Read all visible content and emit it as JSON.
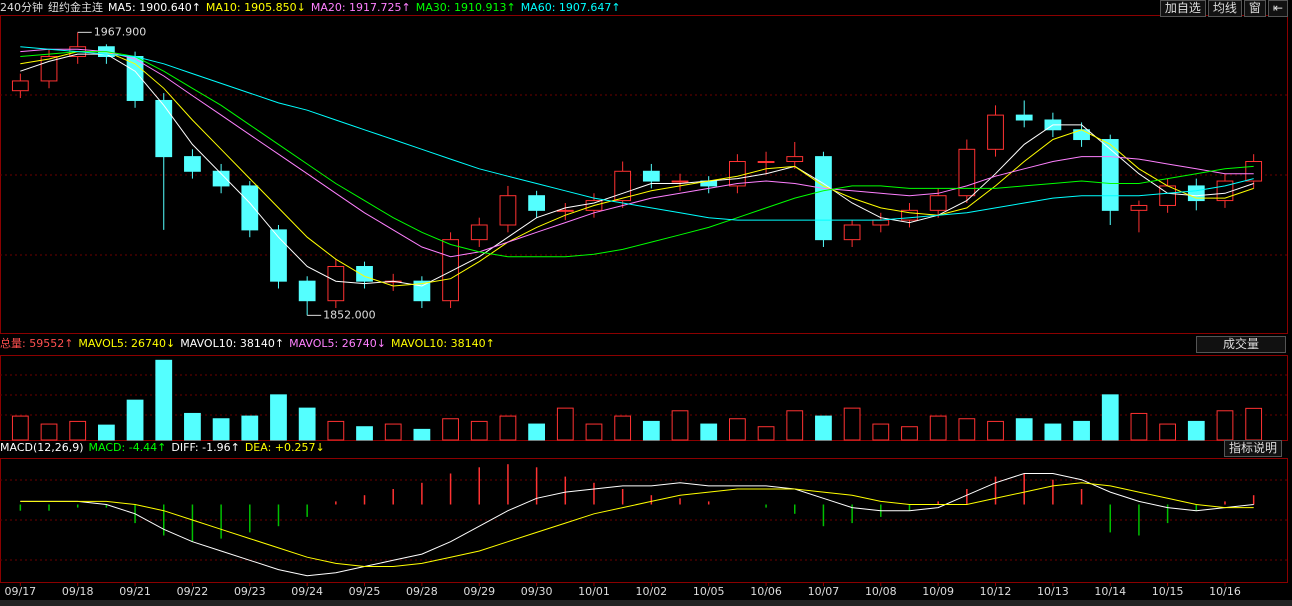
{
  "header": {
    "period": "240分钟",
    "symbol": "纽约金主连",
    "buttons": [
      "加自选",
      "均线",
      "窗"
    ]
  },
  "chart_data": [
    {
      "type": "candlestick",
      "legend": [
        {
          "text": "MA5: 1900.640↑",
          "color": "#ffffff"
        },
        {
          "text": "MA10: 1905.850↓",
          "color": "#ffff00"
        },
        {
          "text": "MA20: 1917.725↑",
          "color": "#ff80ff"
        },
        {
          "text": "MA30: 1910.913↑",
          "color": "#00ff00"
        },
        {
          "text": "MA60: 1907.647↑",
          "color": "#00ffff"
        }
      ],
      "categories": [
        "09/17",
        null,
        "09/18",
        null,
        "09/21",
        null,
        "09/22",
        null,
        "09/23",
        null,
        "09/24",
        null,
        "09/25",
        null,
        "09/28",
        null,
        "09/29",
        null,
        "09/30",
        null,
        "10/01",
        null,
        "10/02",
        null,
        "10/05",
        null,
        "10/06",
        null,
        "10/07",
        null,
        "10/08",
        null,
        "10/09",
        null,
        "10/12",
        null,
        "10/13",
        null,
        "10/14",
        null,
        "10/15",
        null,
        "10/16",
        null
      ],
      "open": [
        1944,
        1948,
        1958,
        1962,
        1958,
        1940,
        1917,
        1911,
        1905,
        1887,
        1866,
        1858,
        1872,
        1866,
        1866,
        1858,
        1883,
        1889,
        1901,
        1895,
        1895,
        1899,
        1911,
        1907,
        1907,
        1905,
        1915,
        1915,
        1917,
        1883,
        1889,
        1891,
        1895,
        1901,
        1920,
        1934,
        1932,
        1928,
        1924,
        1895,
        1897,
        1905,
        1899,
        1907
      ],
      "high": [
        1951,
        1961,
        1967.9,
        1963,
        1960,
        1943,
        1920,
        1914,
        1907,
        1889,
        1868,
        1875,
        1874,
        1869,
        1868,
        1886,
        1892,
        1905,
        1903,
        1898,
        1902,
        1915,
        1914,
        1910,
        1909,
        1918,
        1919,
        1923,
        1919,
        1891,
        1894,
        1898,
        1904,
        1924,
        1938,
        1940,
        1935,
        1931,
        1926,
        1899,
        1908,
        1908,
        1910,
        1918
      ],
      "low": [
        1941,
        1945,
        1955,
        1955,
        1937,
        1887,
        1908,
        1902,
        1884,
        1863,
        1852,
        1855,
        1863,
        1862,
        1855,
        1855,
        1880,
        1886,
        1892,
        1891,
        1892,
        1896,
        1904,
        1903,
        1902,
        1902,
        1910,
        1912,
        1880,
        1880,
        1886,
        1888,
        1892,
        1898,
        1917,
        1929,
        1925,
        1921,
        1889,
        1886,
        1894,
        1895,
        1896,
        1904
      ],
      "close": [
        1948,
        1958,
        1962,
        1958,
        1940,
        1917,
        1911,
        1905,
        1887,
        1866,
        1858,
        1872,
        1866,
        1866,
        1858,
        1883,
        1889,
        1901,
        1895,
        1895,
        1899,
        1911,
        1907,
        1907,
        1905,
        1915,
        1915,
        1917,
        1883,
        1889,
        1891,
        1895,
        1901,
        1920,
        1934,
        1932,
        1928,
        1924,
        1895,
        1897,
        1905,
        1899,
        1907,
        1915
      ],
      "lines": [
        {
          "color": "#ffffff",
          "values": [
            1952,
            1956,
            1959,
            1959,
            1952,
            1938,
            1922,
            1910,
            1898,
            1884,
            1872,
            1866,
            1865,
            1866,
            1864,
            1870,
            1876,
            1884,
            1892,
            1896,
            1898,
            1902,
            1906,
            1906,
            1907,
            1908,
            1910,
            1913,
            1906,
            1898,
            1892,
            1890,
            1893,
            1899,
            1910,
            1922,
            1930,
            1930,
            1920,
            1910,
            1902,
            1901,
            1902,
            1906
          ]
        },
        {
          "color": "#ffff00",
          "values": [
            1955,
            1957,
            1960,
            1960,
            1955,
            1945,
            1932,
            1920,
            1908,
            1896,
            1884,
            1875,
            1868,
            1864,
            1865,
            1867,
            1874,
            1882,
            1888,
            1893,
            1897,
            1900,
            1903,
            1905,
            1907,
            1909,
            1912,
            1913,
            1905,
            1900,
            1896,
            1894,
            1893,
            1896,
            1905,
            1915,
            1924,
            1928,
            1922,
            1912,
            1905,
            1900,
            1900,
            1904
          ]
        },
        {
          "color": "#ff80ff",
          "values": [
            1960,
            1961,
            1961,
            1960,
            1957,
            1950,
            1942,
            1934,
            1926,
            1918,
            1910,
            1902,
            1894,
            1887,
            1880,
            1876,
            1878,
            1882,
            1886,
            1890,
            1894,
            1897,
            1900,
            1902,
            1904,
            1906,
            1907,
            1906,
            1904,
            1903,
            1902,
            1901,
            1902,
            1905,
            1909,
            1912,
            1915,
            1917,
            1917,
            1916,
            1914,
            1912,
            1910,
            1910
          ]
        },
        {
          "color": "#00ff00",
          "values": [
            1958,
            1959,
            1960,
            1960,
            1958,
            1952,
            1945,
            1938,
            1930,
            1922,
            1914,
            1906,
            1899,
            1892,
            1886,
            1881,
            1878,
            1876,
            1876,
            1876,
            1877,
            1879,
            1882,
            1885,
            1888,
            1892,
            1896,
            1900,
            1903,
            1905,
            1905,
            1904,
            1904,
            1904,
            1904,
            1905,
            1906,
            1907,
            1906,
            1906,
            1908,
            1910,
            1912,
            1913
          ]
        },
        {
          "color": "#00ffff",
          "values": [
            1962,
            1961,
            1960,
            1959,
            1958,
            1955,
            1951,
            1947,
            1943,
            1939,
            1936,
            1932,
            1928,
            1924,
            1920,
            1916,
            1912,
            1909,
            1906,
            1903,
            1900,
            1898,
            1896,
            1894,
            1892,
            1891,
            1891,
            1891,
            1891,
            1891,
            1891,
            1892,
            1893,
            1894,
            1896,
            1898,
            1900,
            1901,
            1901,
            1901,
            1902,
            1903,
            1905,
            1908
          ]
        }
      ],
      "annotations": [
        {
          "value": 1967.9,
          "label": "1967.900",
          "index": 2
        },
        {
          "value": 1852,
          "label": "1852.000",
          "index": 10
        }
      ],
      "up_color": "#ff3232",
      "down_color": "#54ffff",
      "ylim": [
        1846,
        1975
      ]
    },
    {
      "type": "bar",
      "legend": [
        {
          "text": "总量: 59552↑",
          "color": "#ff5050"
        },
        {
          "text": "MAVOL5: 26740↓",
          "color": "#ffff00"
        },
        {
          "text": "MAVOL10: 38140↑",
          "color": "#ffffff"
        },
        {
          "text": "MAVOL5: 26740↓",
          "color": "#ff80ff"
        },
        {
          "text": "MAVOL10: 38140↑",
          "color": "#ffff00"
        }
      ],
      "selector": "成交量",
      "values": [
        45000,
        30000,
        35000,
        28000,
        75000,
        150000,
        50000,
        40000,
        45000,
        85000,
        60000,
        35000,
        25000,
        30000,
        20000,
        40000,
        35000,
        45000,
        30000,
        60000,
        30000,
        45000,
        35000,
        55000,
        30000,
        40000,
        25000,
        55000,
        45000,
        60000,
        30000,
        25000,
        45000,
        40000,
        35000,
        40000,
        30000,
        35000,
        85000,
        50000,
        30000,
        35000,
        55000,
        59552
      ],
      "ylim": [
        0,
        160000
      ]
    },
    {
      "type": "macd",
      "legend": [
        {
          "text": "MACD(12,26,9)",
          "color": "#ffffff"
        },
        {
          "text": "MACD: -4.44↑",
          "color": "#00ff00"
        },
        {
          "text": "DIFF: -1.96↑",
          "color": "#ffffff"
        },
        {
          "text": "DEA: +0.257↓",
          "color": "#ffff00"
        }
      ],
      "button": "指标说明",
      "histogram": [
        -2,
        -2,
        -1,
        -1,
        -6,
        -10,
        -12,
        -11,
        -9,
        -7,
        -4,
        1,
        3,
        5,
        7,
        10,
        12,
        13,
        12,
        9,
        7,
        5,
        3,
        2,
        1,
        0,
        -1,
        -3,
        -7,
        -6,
        -4,
        -2,
        1,
        5,
        9,
        10,
        8,
        5,
        -9,
        -10,
        -6,
        -2,
        1,
        3
      ],
      "diff": [
        1,
        1,
        1,
        0,
        -3,
        -8,
        -12,
        -15,
        -18,
        -21,
        -23,
        -22,
        -20,
        -18,
        -16,
        -12,
        -7,
        -2,
        2,
        4,
        5,
        6,
        6,
        7,
        6,
        6,
        6,
        5,
        2,
        -1,
        -2,
        -2,
        -1,
        3,
        7,
        10,
        10,
        8,
        4,
        1,
        -1,
        -2,
        -1,
        0
      ],
      "dea": [
        1,
        1,
        1,
        1,
        0,
        -2,
        -5,
        -8,
        -11,
        -14,
        -17,
        -19,
        -20,
        -20,
        -19,
        -17,
        -15,
        -12,
        -9,
        -6,
        -3,
        -1,
        1,
        3,
        4,
        5,
        5,
        5,
        4,
        3,
        1,
        0,
        0,
        0,
        2,
        4,
        6,
        7,
        6,
        4,
        2,
        0,
        -1,
        -1
      ],
      "diff_color": "#ffffff",
      "dea_color": "#ffff00",
      "up_color": "#ff3232",
      "down_color": "#00c000",
      "ylim": [
        -25,
        15
      ]
    }
  ]
}
